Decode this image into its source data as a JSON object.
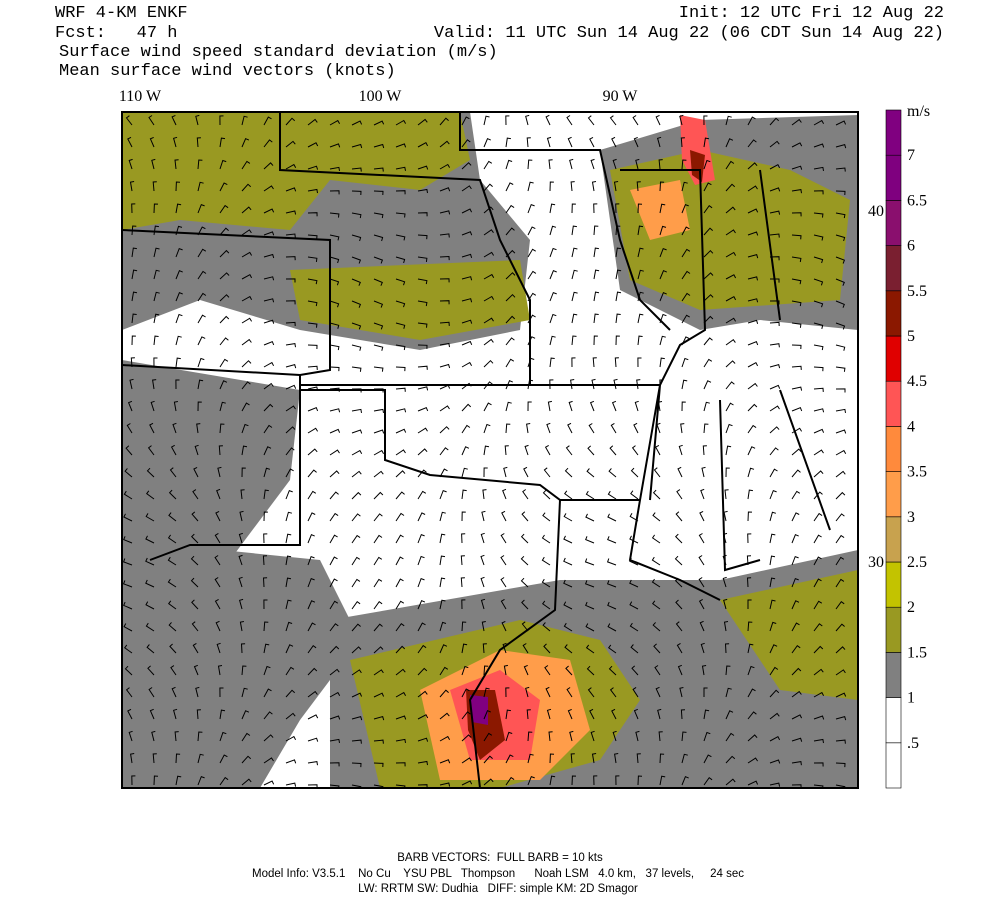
{
  "header": {
    "model": "WRF 4-KM ENKF",
    "forecast": "Fcst:   47 h",
    "init": "Init: 12 UTC Fri 12 Aug 22",
    "valid": "Valid: 11 UTC Sun 14 Aug 22 (06 CDT Sun 14 Aug 22)",
    "field": "Surface wind speed standard deviation (m/s)",
    "vectors": "Mean surface wind vectors (knots)"
  },
  "map": {
    "lon_labels": [
      "110 W",
      "100 W",
      "90 W"
    ],
    "lat_labels": [
      "40 N",
      "30 N"
    ]
  },
  "colorbar": {
    "unit": "m/s",
    "labels": [
      ".5",
      "1",
      "1.5",
      "2",
      "2.5",
      "3",
      "3.5",
      "4",
      "4.5",
      "5",
      "5.5",
      "6",
      "6.5",
      "7"
    ],
    "colors": [
      "#ffffff",
      "#ffffff",
      "#808080",
      "#999922",
      "#c3c300",
      "#c8a24e",
      "#ff9d4a",
      "#ff8a3c",
      "#ff5555",
      "#e00000",
      "#8b1800",
      "#7a1f30",
      "#8a0f6e",
      "#7f007f",
      "#800080"
    ]
  },
  "footer": {
    "barb": "BARB VECTORS:  FULL BARB = 10 kts",
    "model_info": "Model Info: V3.5.1    No Cu    YSU PBL   Thompson      Noah LSM   4.0 km,   37 levels,     24 sec",
    "physics": "LW: RRTM SW: Dudhia   DIFF: simple KM: 2D Smagor"
  }
}
